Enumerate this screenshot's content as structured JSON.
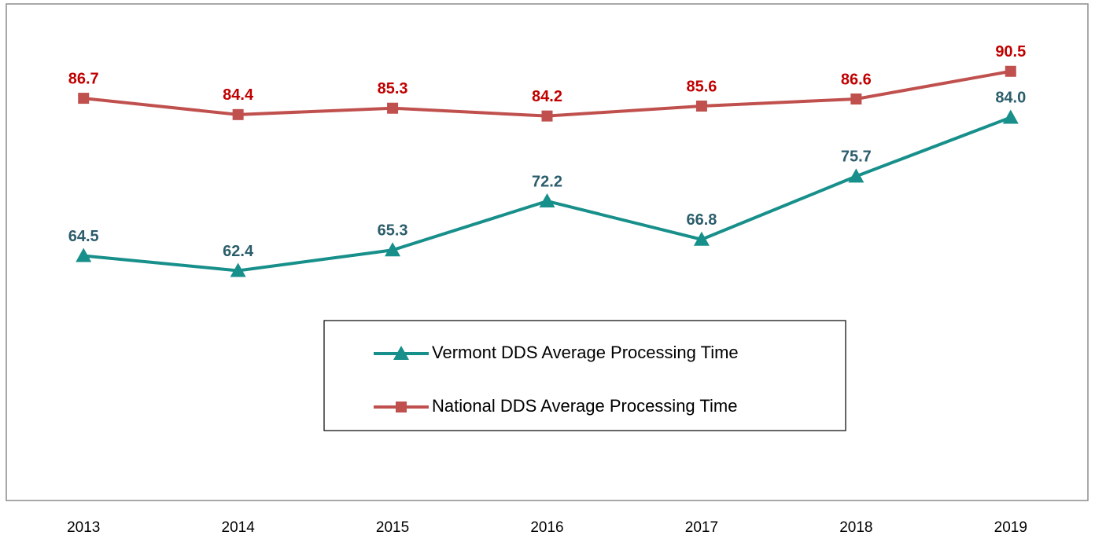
{
  "chart_data": {
    "type": "line",
    "categories": [
      "2013",
      "2014",
      "2015",
      "2016",
      "2017",
      "2018",
      "2019"
    ],
    "ylim": [
      30,
      100
    ],
    "series": [
      {
        "name": "Vermont DDS Average Processing Time",
        "color": "#178f8a",
        "label_color": "#2b5d6b",
        "marker": "triangle",
        "values": [
          64.5,
          62.4,
          65.3,
          72.2,
          66.8,
          75.7,
          84.0
        ],
        "value_labels": [
          "64.5",
          "62.4",
          "65.3",
          "72.2",
          "66.8",
          "75.7",
          "84.0"
        ]
      },
      {
        "name": "National DDS Average Processing Time",
        "color": "#c0504d",
        "label_color": "#c00000",
        "marker": "square",
        "values": [
          86.7,
          84.4,
          85.3,
          84.2,
          85.6,
          86.6,
          90.5
        ],
        "value_labels": [
          "86.7",
          "84.4",
          "85.3",
          "84.2",
          "85.6",
          "86.6",
          "90.5"
        ]
      }
    ],
    "legend": "center"
  }
}
